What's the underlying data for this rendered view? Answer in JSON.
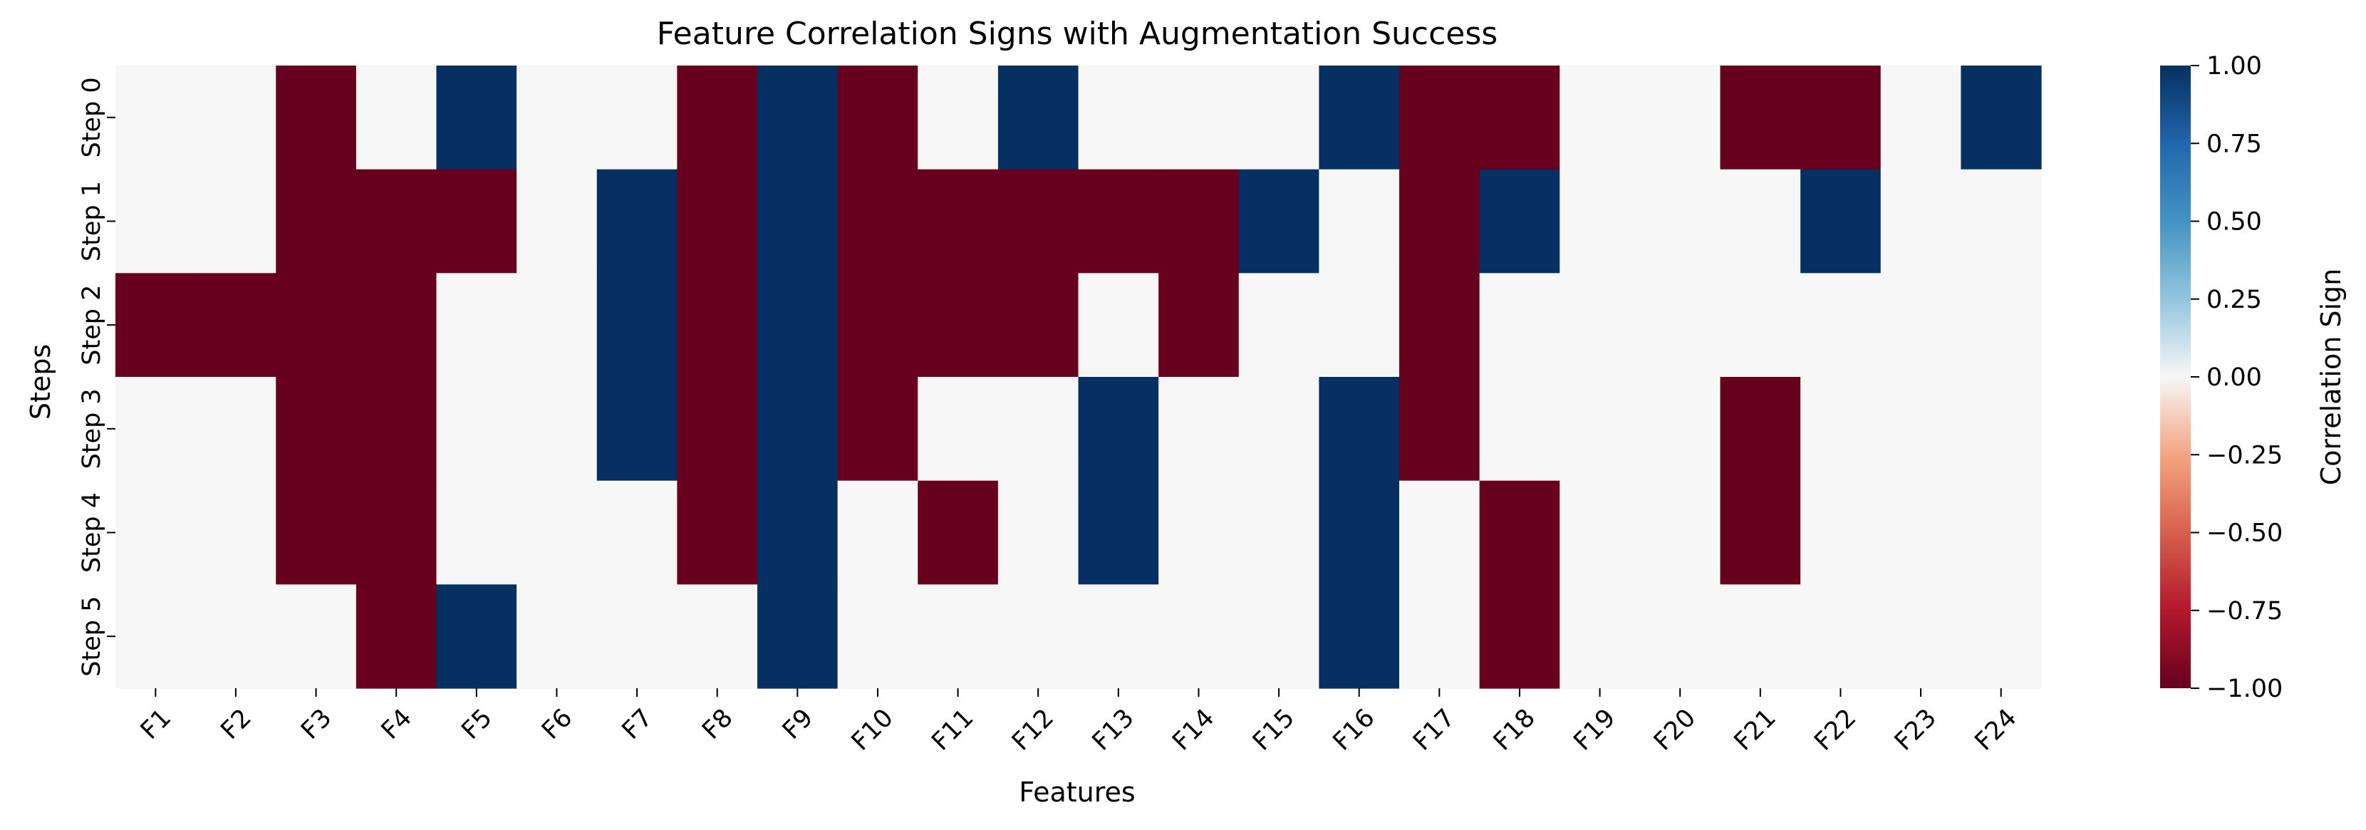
{
  "chart_data": {
    "type": "heatmap",
    "title": "Feature Correlation Signs with Augmentation Success",
    "xlabel": "Features",
    "ylabel": "Steps",
    "x_categories": [
      "F1",
      "F2",
      "F3",
      "F4",
      "F5",
      "F6",
      "F7",
      "F8",
      "F9",
      "F10",
      "F11",
      "F12",
      "F13",
      "F14",
      "F15",
      "F16",
      "F17",
      "F18",
      "F19",
      "F20",
      "F21",
      "F22",
      "F23",
      "F24"
    ],
    "y_categories": [
      "Step 0",
      "Step 1",
      "Step 2",
      "Step 3",
      "Step 4",
      "Step 5"
    ],
    "values": [
      [
        0,
        0,
        -1,
        0,
        1,
        0,
        0,
        -1,
        1,
        -1,
        0,
        1,
        0,
        0,
        0,
        1,
        -1,
        -1,
        0,
        0,
        -1,
        -1,
        0,
        1
      ],
      [
        0,
        0,
        -1,
        -1,
        -1,
        0,
        1,
        -1,
        1,
        -1,
        -1,
        -1,
        -1,
        -1,
        1,
        0,
        -1,
        1,
        0,
        0,
        0,
        1,
        0,
        0
      ],
      [
        -1,
        -1,
        -1,
        -1,
        0,
        0,
        1,
        -1,
        1,
        -1,
        -1,
        -1,
        0,
        -1,
        0,
        0,
        -1,
        0,
        0,
        0,
        0,
        0,
        0,
        0
      ],
      [
        0,
        0,
        -1,
        -1,
        0,
        0,
        1,
        -1,
        1,
        -1,
        0,
        0,
        1,
        0,
        0,
        1,
        -1,
        0,
        0,
        0,
        -1,
        0,
        0,
        0
      ],
      [
        0,
        0,
        -1,
        -1,
        0,
        0,
        0,
        -1,
        1,
        0,
        -1,
        0,
        1,
        0,
        0,
        1,
        0,
        -1,
        0,
        0,
        -1,
        0,
        0,
        0
      ],
      [
        0,
        0,
        0,
        -1,
        1,
        0,
        0,
        0,
        1,
        0,
        0,
        0,
        0,
        0,
        0,
        1,
        0,
        -1,
        0,
        0,
        0,
        0,
        0,
        0
      ]
    ],
    "colorbar": {
      "label": "Correlation Sign",
      "range": [
        -1,
        1
      ],
      "ticks": [
        "1.00",
        "0.75",
        "0.50",
        "0.25",
        "0.00",
        "−0.25",
        "−0.50",
        "−0.75",
        "−1.00"
      ],
      "colormap": "RdBu",
      "colors": {
        "negative": "#67001f",
        "zero": "#f7f7f7",
        "positive": "#053061"
      }
    }
  }
}
